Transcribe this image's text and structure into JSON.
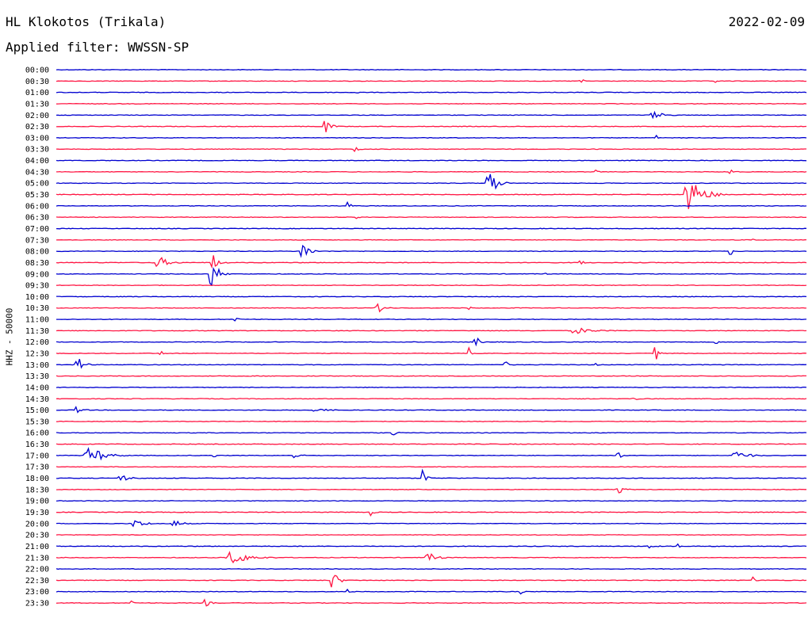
{
  "header": {
    "station": "HL Klokotos (Trikala)",
    "filter": "Applied filter: WWSSN-SP",
    "date": "2022-02-09"
  },
  "chart_data": {
    "type": "line",
    "title": "HL Klokotos (Trikala)",
    "ylabel": "HHZ - 50000",
    "colors": {
      "even": "#0000d0",
      "odd": "#ff1744"
    },
    "rows": [
      {
        "label": "00:00",
        "events": []
      },
      {
        "label": "00:30",
        "events": [
          [
            0.7,
            3,
            0.006
          ],
          [
            0.88,
            2,
            0.004
          ]
        ]
      },
      {
        "label": "01:00",
        "events": [
          [
            0.4,
            3,
            0.004
          ]
        ]
      },
      {
        "label": "01:30",
        "events": []
      },
      {
        "label": "02:00",
        "events": [
          [
            0.8,
            4,
            0.02
          ]
        ]
      },
      {
        "label": "02:30",
        "events": [
          [
            0.36,
            7,
            0.012
          ]
        ]
      },
      {
        "label": "03:00",
        "events": [
          [
            0.8,
            3,
            0.004
          ]
        ]
      },
      {
        "label": "03:30",
        "events": [
          [
            0.4,
            3,
            0.006
          ]
        ]
      },
      {
        "label": "04:00",
        "events": []
      },
      {
        "label": "04:30",
        "events": [
          [
            0.9,
            4,
            0.006
          ],
          [
            0.72,
            2,
            0.004
          ]
        ]
      },
      {
        "label": "05:00",
        "events": [
          [
            0.58,
            15,
            0.016
          ]
        ]
      },
      {
        "label": "05:30",
        "events": [
          [
            0.85,
            18,
            0.03
          ]
        ]
      },
      {
        "label": "06:00",
        "events": [
          [
            0.39,
            5,
            0.006
          ]
        ]
      },
      {
        "label": "06:30",
        "events": [
          [
            0.4,
            3,
            0.004
          ]
        ]
      },
      {
        "label": "07:00",
        "events": []
      },
      {
        "label": "07:30",
        "events": [
          [
            0.93,
            3,
            0.004
          ]
        ]
      },
      {
        "label": "08:00",
        "events": [
          [
            0.33,
            16,
            0.012
          ],
          [
            0.9,
            4,
            0.006
          ]
        ]
      },
      {
        "label": "08:30",
        "events": [
          [
            0.14,
            6,
            0.02
          ],
          [
            0.21,
            10,
            0.012
          ],
          [
            0.7,
            3,
            0.006
          ]
        ]
      },
      {
        "label": "09:00",
        "events": [
          [
            0.21,
            16,
            0.014
          ],
          [
            0.65,
            3,
            0.004
          ]
        ]
      },
      {
        "label": "09:30",
        "events": []
      },
      {
        "label": "10:00",
        "events": []
      },
      {
        "label": "10:30",
        "events": [
          [
            0.43,
            9,
            0.01
          ],
          [
            0.55,
            3,
            0.004
          ]
        ]
      },
      {
        "label": "11:00",
        "events": [
          [
            0.24,
            3,
            0.006
          ]
        ]
      },
      {
        "label": "11:30",
        "events": [
          [
            0.7,
            3,
            0.03
          ]
        ]
      },
      {
        "label": "12:00",
        "events": [
          [
            0.56,
            7,
            0.008
          ],
          [
            0.88,
            4,
            0.004
          ]
        ]
      },
      {
        "label": "12:30",
        "events": [
          [
            0.14,
            3,
            0.006
          ],
          [
            0.55,
            7,
            0.004
          ],
          [
            0.8,
            8,
            0.006
          ]
        ]
      },
      {
        "label": "13:00",
        "events": [
          [
            0.03,
            9,
            0.012
          ],
          [
            0.6,
            3,
            0.006
          ],
          [
            0.72,
            2,
            0.004
          ]
        ]
      },
      {
        "label": "13:30",
        "events": []
      },
      {
        "label": "14:00",
        "events": []
      },
      {
        "label": "14:30",
        "events": [
          [
            0.77,
            4,
            0.006
          ]
        ]
      },
      {
        "label": "15:00",
        "events": [
          [
            0.03,
            4,
            0.01
          ],
          [
            0.35,
            2,
            0.02
          ]
        ]
      },
      {
        "label": "15:30",
        "events": []
      },
      {
        "label": "16:00",
        "events": [
          [
            0.45,
            5,
            0.006
          ]
        ]
      },
      {
        "label": "16:30",
        "events": []
      },
      {
        "label": "17:00",
        "events": [
          [
            0.05,
            9,
            0.03
          ],
          [
            0.21,
            3,
            0.006
          ],
          [
            0.32,
            3,
            0.01
          ],
          [
            0.75,
            3,
            0.01
          ],
          [
            0.91,
            5,
            0.025
          ]
        ]
      },
      {
        "label": "17:30",
        "events": []
      },
      {
        "label": "18:00",
        "events": [
          [
            0.09,
            3,
            0.02
          ],
          [
            0.49,
            11,
            0.008
          ]
        ]
      },
      {
        "label": "18:30",
        "events": [
          [
            0.75,
            6,
            0.01
          ]
        ]
      },
      {
        "label": "19:00",
        "events": []
      },
      {
        "label": "19:30",
        "events": [
          [
            0.42,
            4,
            0.006
          ]
        ]
      },
      {
        "label": "20:00",
        "events": [
          [
            0.11,
            4,
            0.02
          ],
          [
            0.16,
            4,
            0.015
          ]
        ]
      },
      {
        "label": "20:30",
        "events": []
      },
      {
        "label": "21:00",
        "events": [
          [
            0.79,
            3,
            0.01
          ],
          [
            0.83,
            3,
            0.004
          ]
        ]
      },
      {
        "label": "21:30",
        "events": [
          [
            0.24,
            7,
            0.035
          ],
          [
            0.5,
            4,
            0.02
          ]
        ]
      },
      {
        "label": "22:00",
        "events": []
      },
      {
        "label": "22:30",
        "events": [
          [
            0.37,
            12,
            0.012
          ],
          [
            0.93,
            4,
            0.006
          ]
        ]
      },
      {
        "label": "23:00",
        "events": [
          [
            0.39,
            3,
            0.006
          ],
          [
            0.62,
            4,
            0.004
          ]
        ]
      },
      {
        "label": "23:30",
        "events": [
          [
            0.1,
            5,
            0.004
          ],
          [
            0.2,
            4,
            0.01
          ]
        ]
      }
    ]
  }
}
